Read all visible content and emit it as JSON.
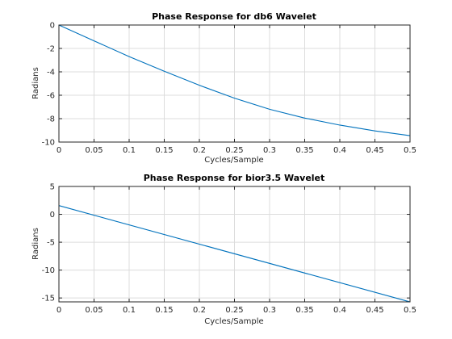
{
  "chart_data": [
    {
      "type": "line",
      "title": "Phase Response for db6 Wavelet",
      "xlabel": "Cycles/Sample",
      "ylabel": "Radians",
      "xlim": [
        0,
        0.5
      ],
      "ylim": [
        -10,
        0
      ],
      "xticks": [
        0,
        0.05,
        0.1,
        0.15,
        0.2,
        0.25,
        0.3,
        0.35,
        0.4,
        0.45,
        0.5
      ],
      "xtick_labels": [
        "0",
        "0.05",
        "0.1",
        "0.15",
        "0.2",
        "0.25",
        "0.3",
        "0.35",
        "0.4",
        "0.45",
        "0.5"
      ],
      "yticks": [
        -10,
        -8,
        -6,
        -4,
        -2,
        0
      ],
      "ytick_labels": [
        "-10",
        "-8",
        "-6",
        "-4",
        "-2",
        "0"
      ],
      "grid": true,
      "color": "#0072bd",
      "series": [
        {
          "x": [
            0,
            0.05,
            0.1,
            0.15,
            0.2,
            0.25,
            0.3,
            0.35,
            0.4,
            0.45,
            0.5
          ],
          "values": [
            0,
            -1.35,
            -2.7,
            -3.95,
            -5.15,
            -6.25,
            -7.2,
            -7.95,
            -8.55,
            -9.05,
            -9.45
          ]
        }
      ]
    },
    {
      "type": "line",
      "title": "Phase Response for bior3.5 Wavelet",
      "xlabel": "Cycles/Sample",
      "ylabel": "Radians",
      "xlim": [
        0,
        0.5
      ],
      "ylim": [
        -15.7,
        5
      ],
      "xticks": [
        0,
        0.05,
        0.1,
        0.15,
        0.2,
        0.25,
        0.3,
        0.35,
        0.4,
        0.45,
        0.5
      ],
      "xtick_labels": [
        "0",
        "0.05",
        "0.1",
        "0.15",
        "0.2",
        "0.25",
        "0.3",
        "0.35",
        "0.4",
        "0.45",
        "0.5"
      ],
      "yticks": [
        -15,
        -10,
        -5,
        0,
        5
      ],
      "ytick_labels": [
        "-15",
        "-10",
        "-5",
        "0",
        "5"
      ],
      "grid": true,
      "color": "#0072bd",
      "series": [
        {
          "x": [
            0,
            0.5
          ],
          "values": [
            1.57,
            -15.71
          ]
        }
      ]
    }
  ]
}
